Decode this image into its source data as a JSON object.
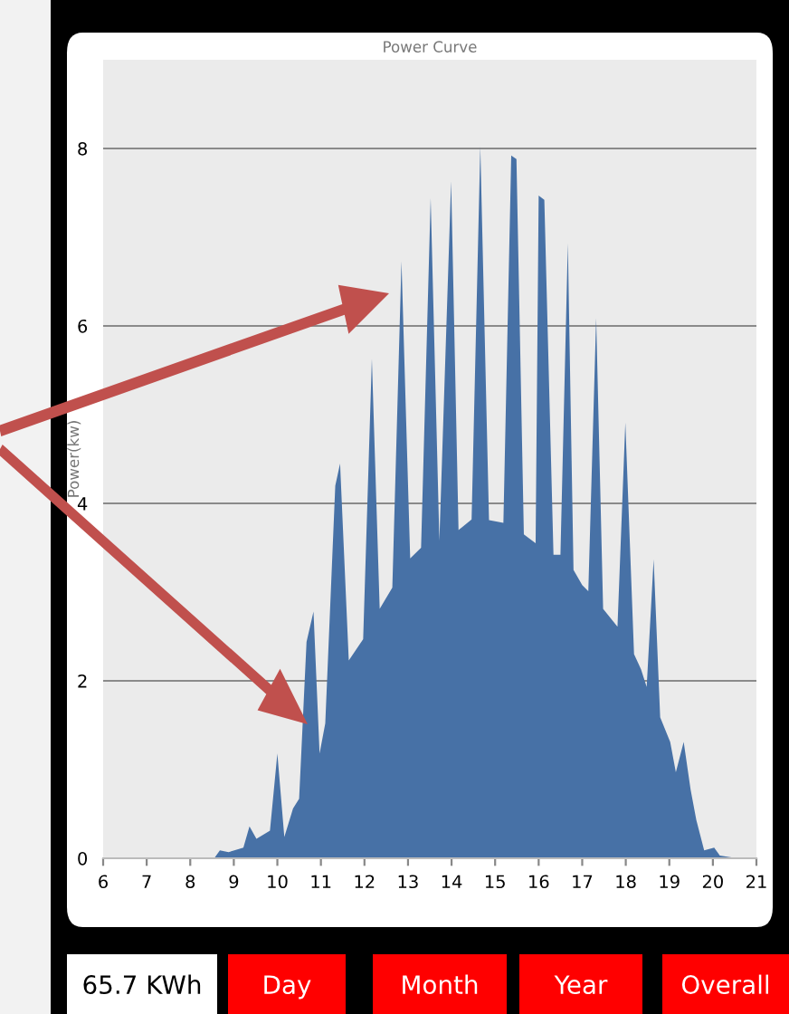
{
  "chart_data": {
    "type": "area",
    "title": "Power Curve",
    "ylabel": "Power(kw)",
    "x": [
      8.55,
      8.68,
      8.88,
      9.22,
      9.36,
      9.52,
      9.83,
      10.0,
      10.16,
      10.36,
      10.5,
      10.67,
      10.83,
      10.97,
      11.1,
      11.33,
      11.44,
      11.64,
      11.97,
      12.17,
      12.35,
      12.64,
      12.85,
      13.05,
      13.3,
      13.52,
      13.72,
      13.99,
      14.16,
      14.46,
      14.66,
      14.86,
      15.19,
      15.37,
      15.49,
      15.66,
      15.93,
      16.0,
      16.13,
      16.34,
      16.5,
      16.67,
      16.8,
      17.0,
      17.14,
      17.32,
      17.48,
      17.81,
      17.99,
      18.19,
      18.35,
      18.48,
      18.64,
      18.79,
      19.02,
      19.15,
      19.33,
      19.49,
      19.62,
      19.8,
      20.03,
      20.16,
      20.56
    ],
    "series": [
      {
        "color": "#4771a6",
        "values": [
          0,
          0.09,
          0.07,
          0.12,
          0.36,
          0.22,
          0.31,
          1.18,
          0.24,
          0.56,
          0.67,
          2.44,
          2.78,
          1.18,
          1.52,
          4.2,
          4.45,
          2.23,
          2.47,
          5.63,
          2.81,
          3.05,
          6.73,
          3.38,
          3.5,
          7.44,
          3.58,
          7.63,
          3.7,
          3.82,
          8.02,
          3.81,
          3.78,
          7.92,
          7.88,
          3.65,
          3.55,
          7.47,
          7.42,
          3.42,
          3.42,
          6.93,
          3.25,
          3.08,
          3.01,
          6.09,
          2.81,
          2.61,
          4.91,
          2.3,
          2.13,
          1.93,
          3.37,
          1.59,
          1.31,
          0.97,
          1.31,
          0.77,
          0.43,
          0.09,
          0.12,
          0.03,
          0
        ]
      }
    ],
    "xlim": [
      6,
      21
    ],
    "xticks": [
      6,
      7,
      8,
      9,
      10,
      11,
      12,
      13,
      14,
      15,
      16,
      17,
      18,
      19,
      20,
      21
    ],
    "ylim": [
      0,
      9
    ],
    "yticks": [
      0,
      2,
      4,
      6,
      8
    ],
    "grid": "y",
    "legend": false,
    "annotations": [
      "65.7 KWh",
      "Day",
      "Month",
      "Year",
      "Overall"
    ]
  }
}
